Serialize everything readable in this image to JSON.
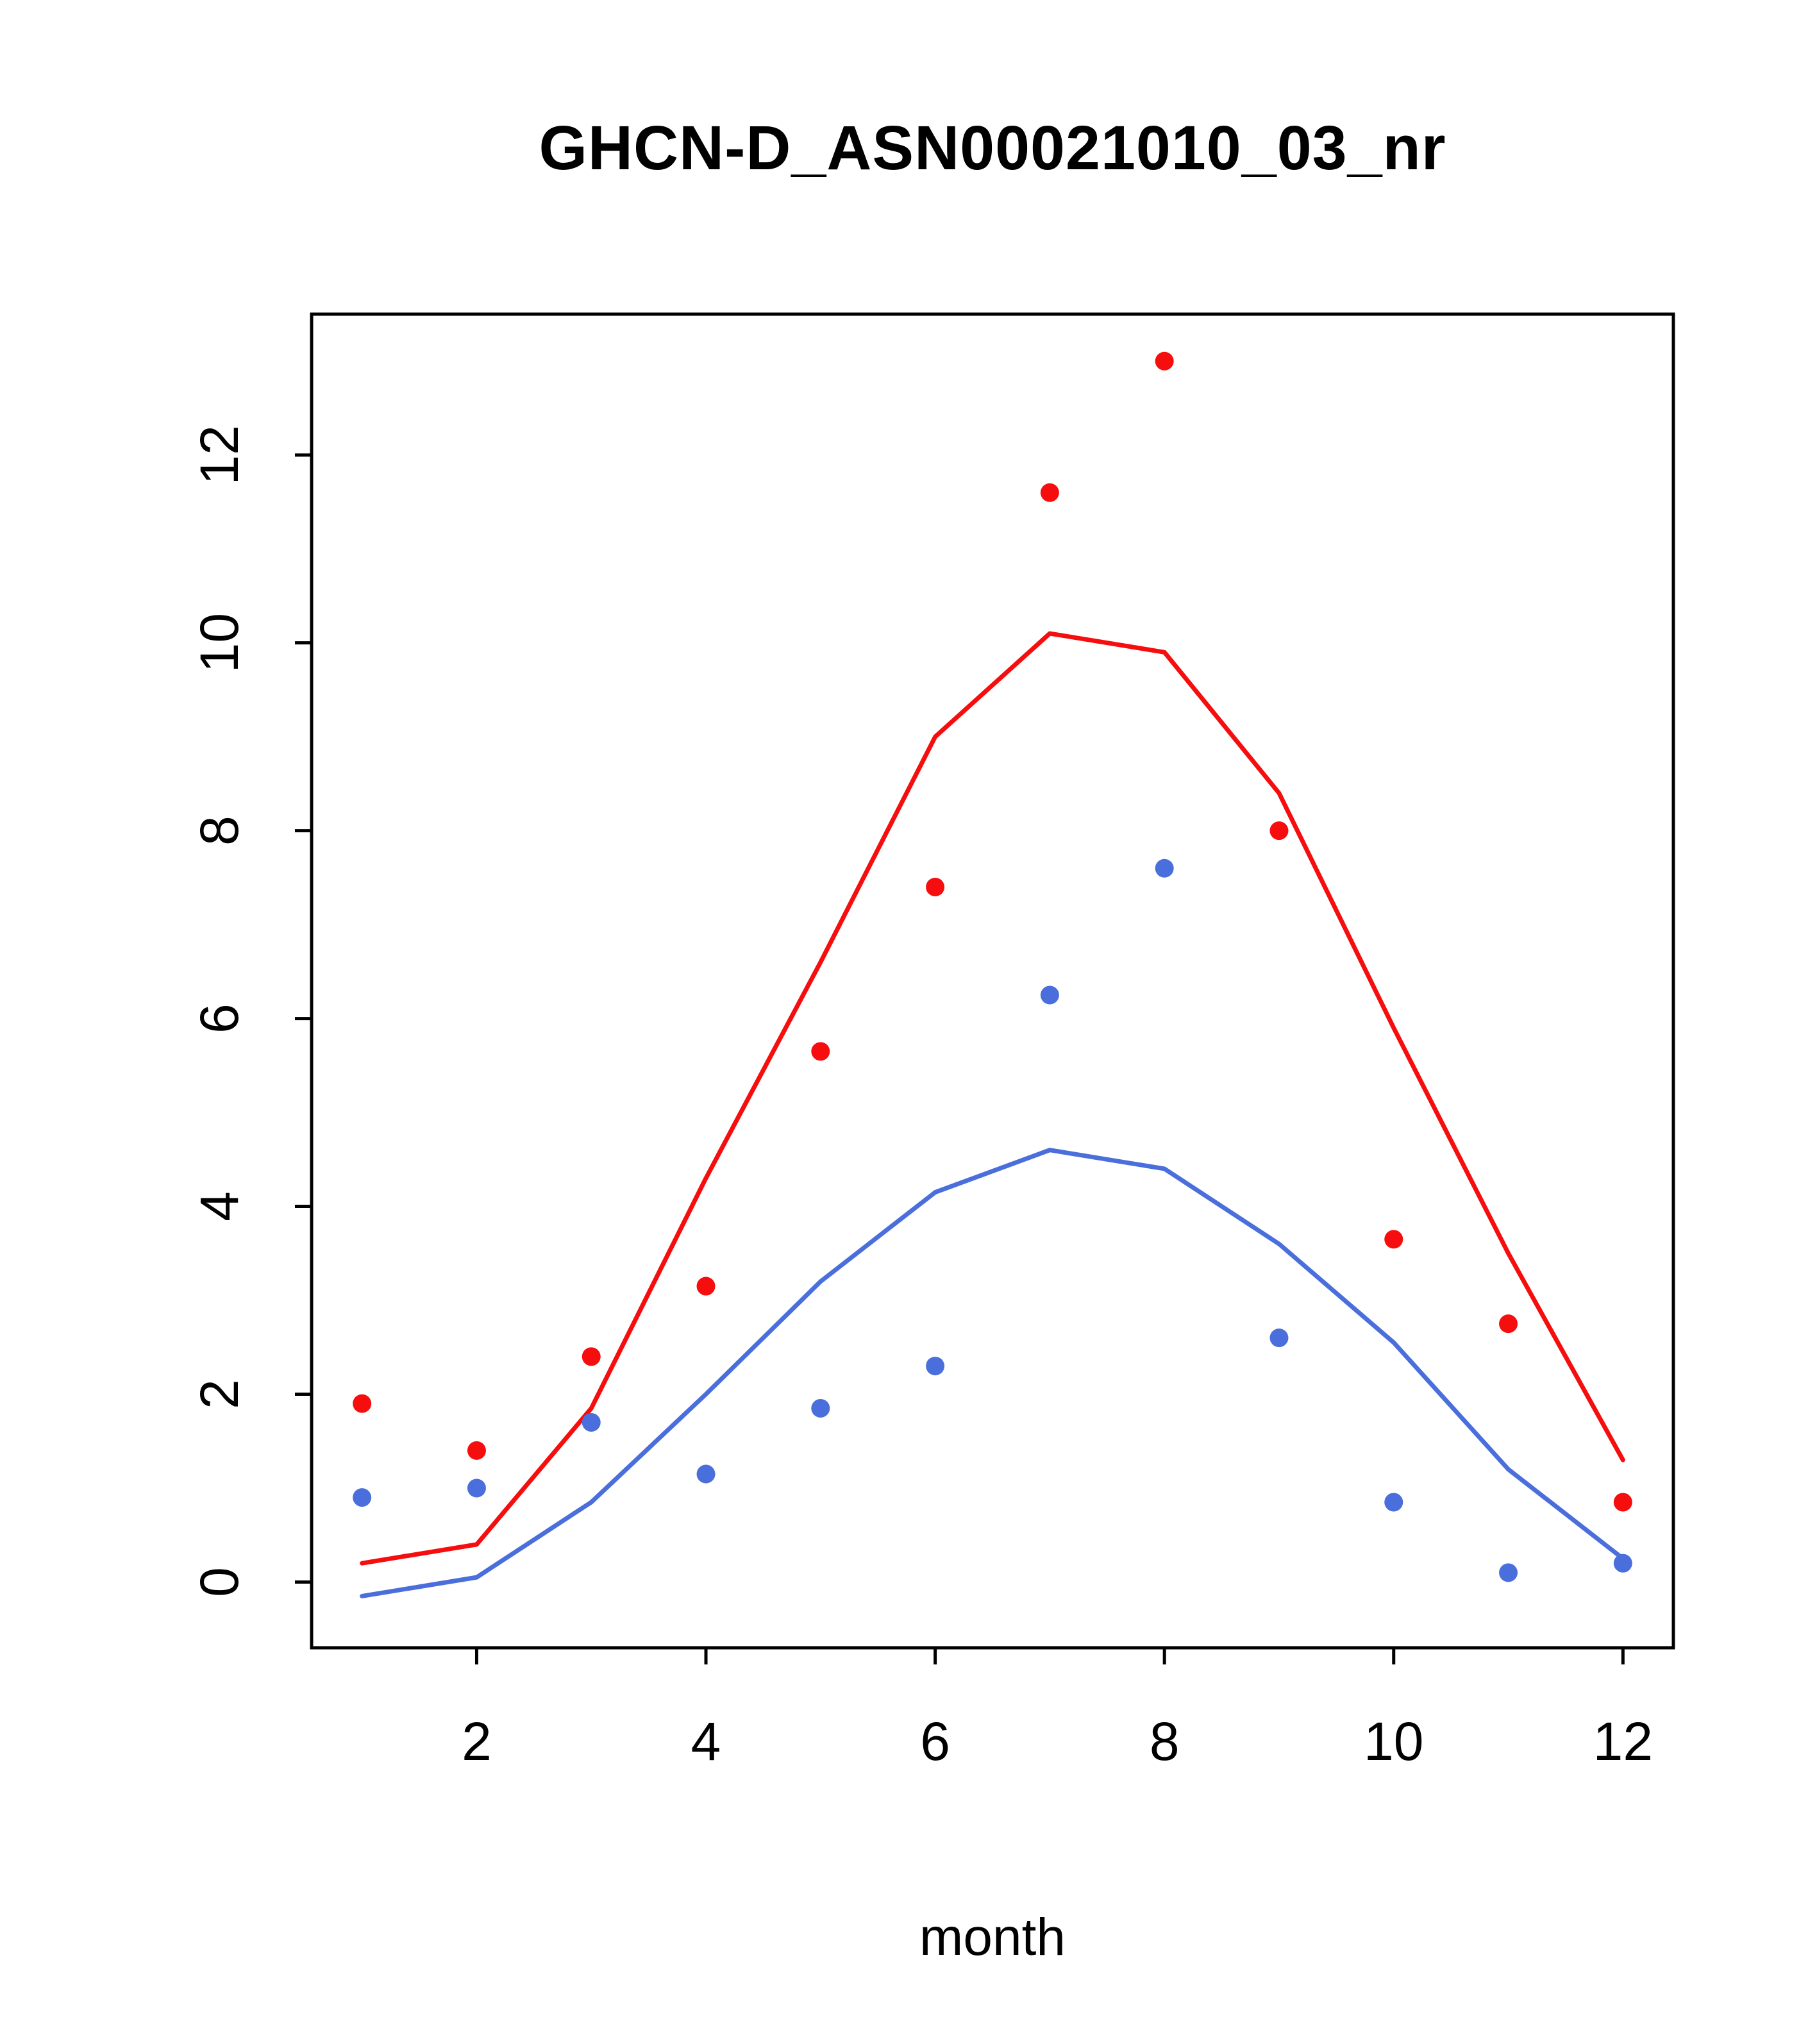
{
  "chart_data": {
    "type": "scatter",
    "title": "GHCN-D_ASN00021010_03_nr",
    "xlabel": "month",
    "ylabel": "",
    "xlim": [
      0.56,
      12.44
    ],
    "ylim": [
      -0.7,
      13.5
    ],
    "x_ticks": [
      2,
      4,
      6,
      8,
      10,
      12
    ],
    "y_ticks": [
      0,
      2,
      4,
      6,
      8,
      10,
      12
    ],
    "grid": false,
    "legend": "none",
    "x": [
      1,
      2,
      3,
      4,
      5,
      6,
      7,
      8,
      9,
      10,
      11,
      12
    ],
    "series": [
      {
        "name": "red points",
        "style": "points",
        "color": "#f60d0d",
        "values": [
          1.9,
          1.4,
          2.4,
          3.15,
          5.65,
          7.4,
          11.6,
          13.0,
          8.0,
          3.65,
          2.75,
          0.85
        ]
      },
      {
        "name": "red line",
        "style": "line",
        "color": "#f60d0d",
        "values": [
          0.2,
          0.4,
          1.85,
          4.3,
          6.6,
          9.0,
          10.1,
          9.9,
          8.4,
          5.9,
          3.5,
          1.3
        ]
      },
      {
        "name": "blue points",
        "style": "points",
        "color": "#4a6fdc",
        "values": [
          0.9,
          1.0,
          1.7,
          1.15,
          1.85,
          2.3,
          6.25,
          7.6,
          2.6,
          0.85,
          0.1,
          0.2
        ]
      },
      {
        "name": "blue line",
        "style": "line",
        "color": "#4a6fdc",
        "values": [
          -0.15,
          0.05,
          0.85,
          2.0,
          3.2,
          4.15,
          4.6,
          4.4,
          3.6,
          2.55,
          1.2,
          0.25
        ]
      }
    ],
    "axis_color": "#000000"
  }
}
